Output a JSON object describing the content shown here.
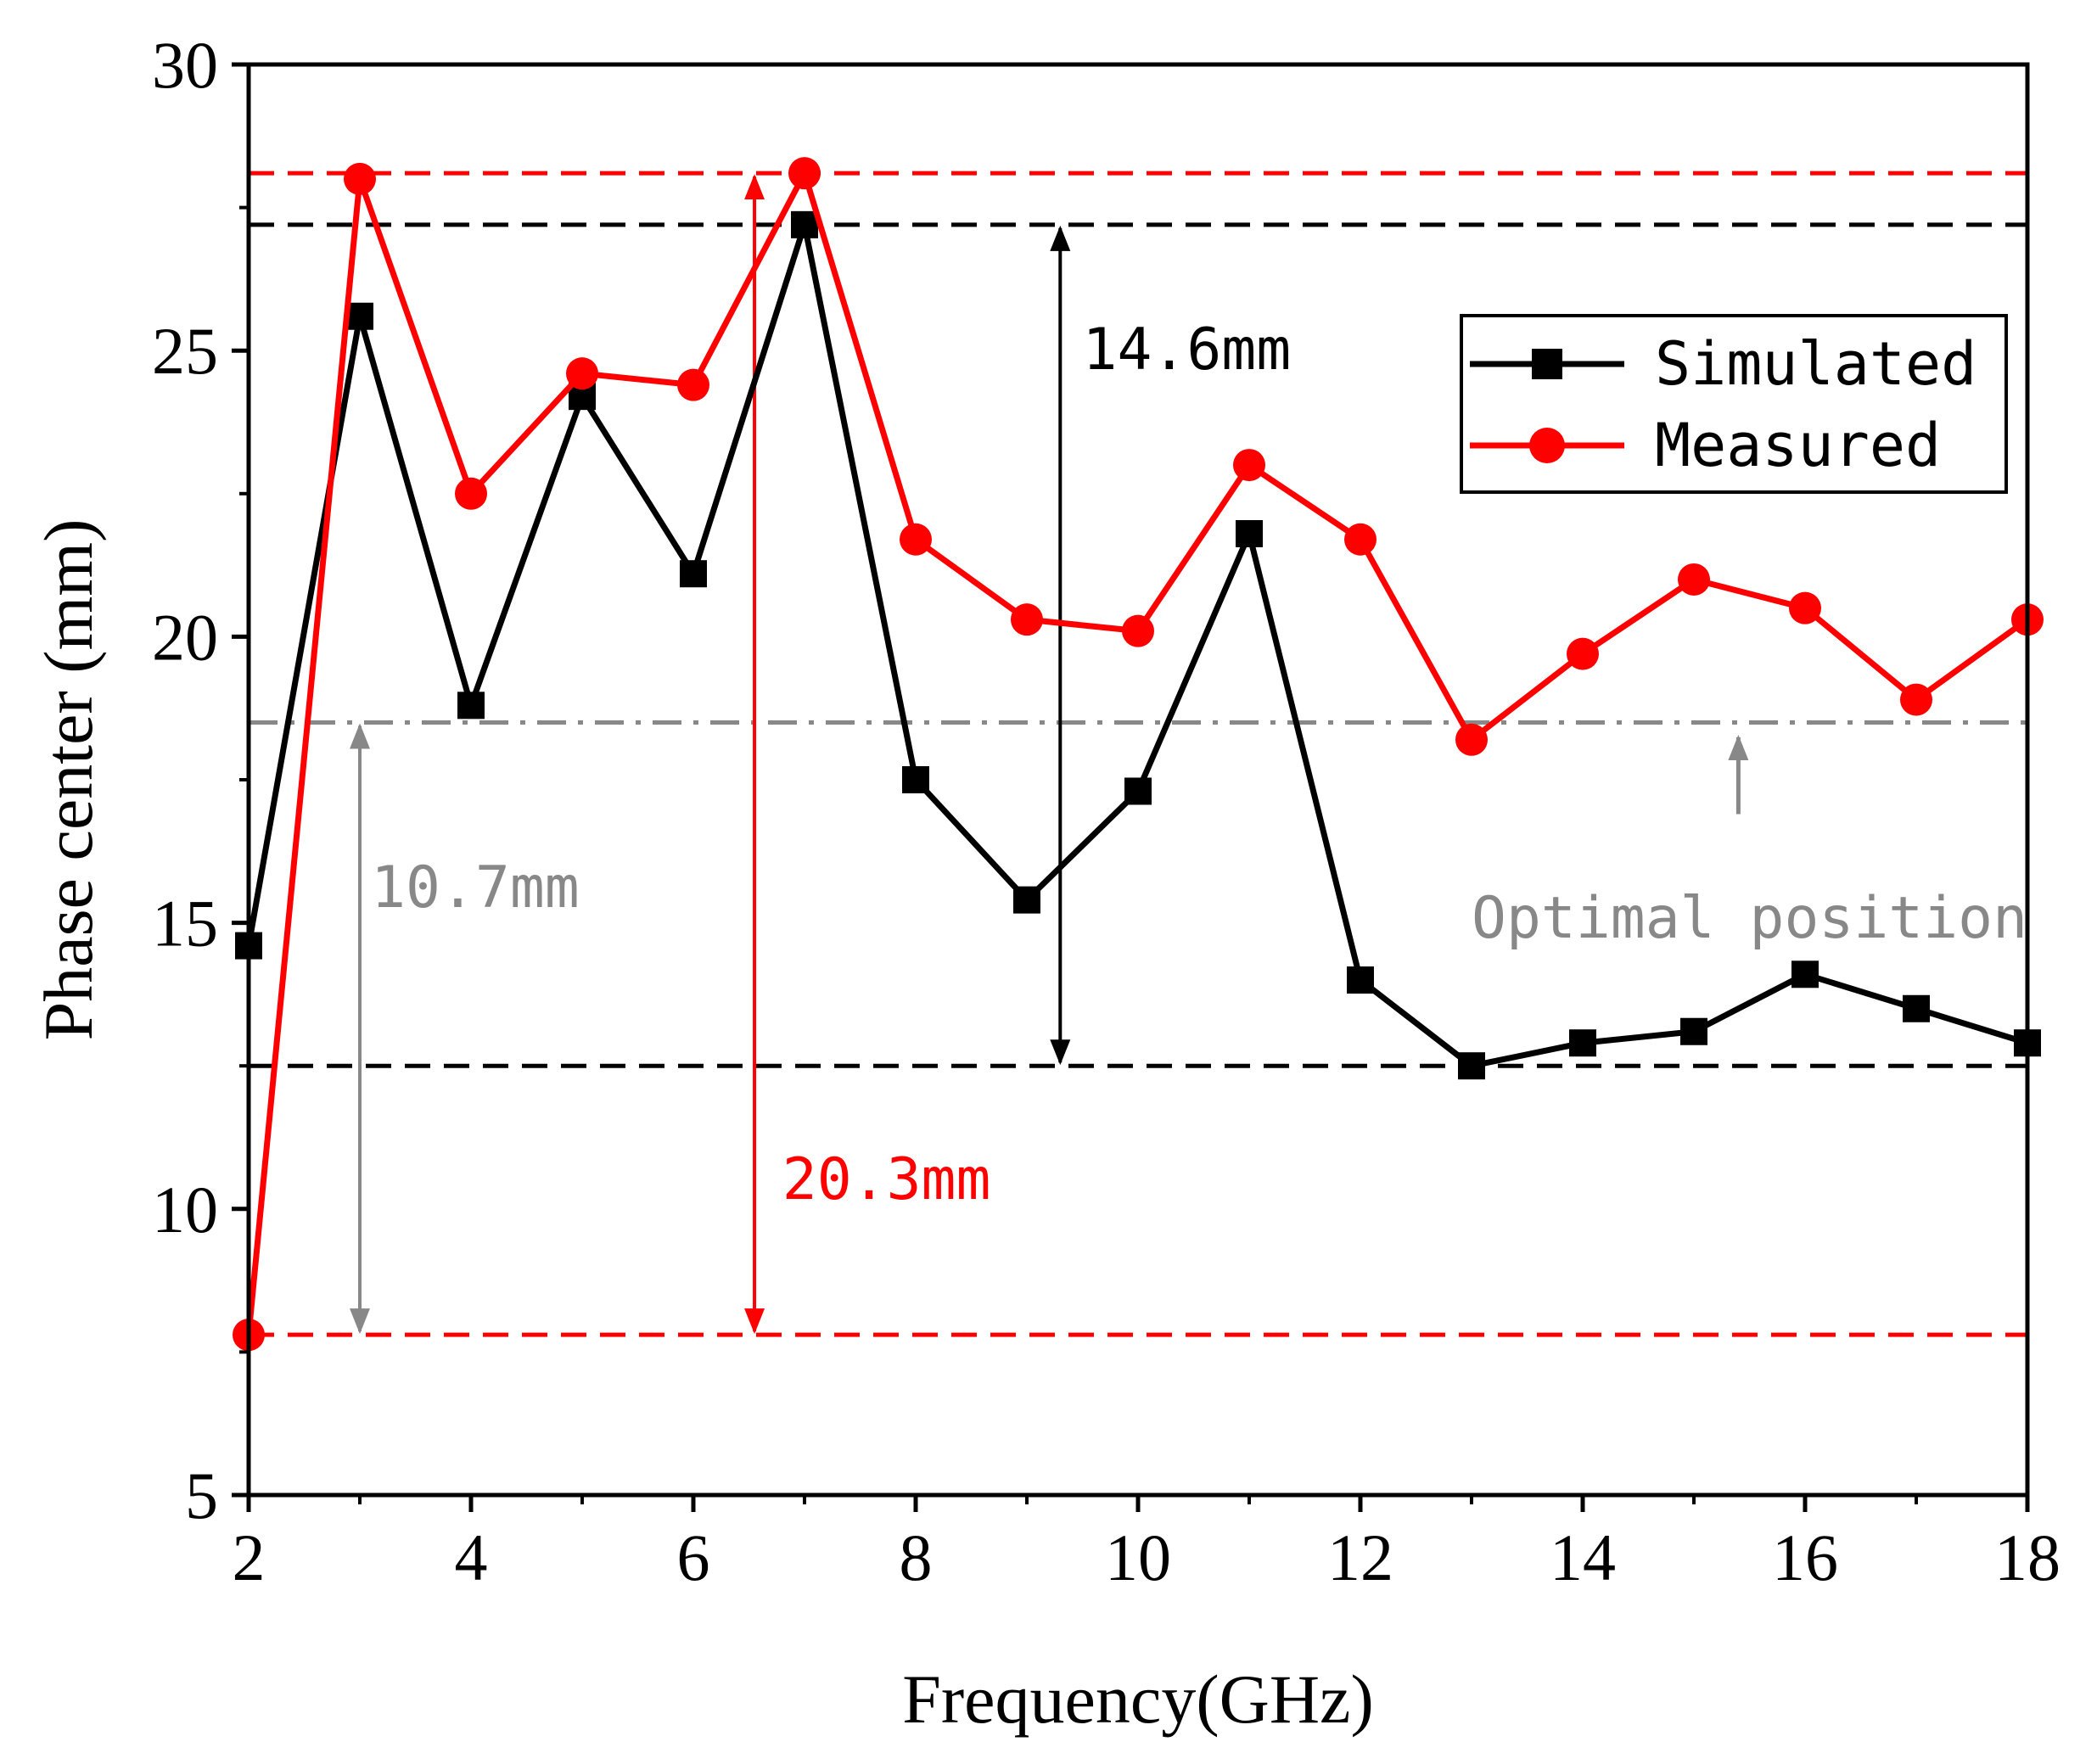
{
  "chart_data": {
    "type": "line",
    "title": "",
    "xlabel": "Frequency(GHz)",
    "ylabel": "Phase center (mm)",
    "xlim": [
      2,
      18
    ],
    "ylim": [
      5,
      30
    ],
    "xticks": [
      2,
      4,
      6,
      8,
      10,
      12,
      14,
      16,
      18
    ],
    "yticks": [
      5,
      10,
      15,
      20,
      25,
      30
    ],
    "x": [
      2,
      3,
      4,
      5,
      6,
      7,
      8,
      9,
      10,
      11,
      12,
      13,
      14,
      15,
      16,
      17,
      18
    ],
    "series": [
      {
        "name": "Simulated",
        "color": "#000000",
        "marker": "square",
        "values": [
          14.6,
          25.6,
          18.8,
          24.2,
          21.1,
          27.2,
          17.5,
          15.4,
          17.3,
          21.8,
          14.0,
          12.5,
          12.9,
          13.1,
          14.1,
          13.5,
          12.9
        ]
      },
      {
        "name": "Measured",
        "color": "#ff0000",
        "marker": "circle",
        "values": [
          7.8,
          28.0,
          22.5,
          24.6,
          24.4,
          28.1,
          21.7,
          20.3,
          20.1,
          23.0,
          21.7,
          18.2,
          19.7,
          21.0,
          20.5,
          18.9,
          20.3
        ]
      }
    ],
    "reference_lines": [
      {
        "name": "measured-max-line",
        "y": 28.1,
        "color": "#ff0000",
        "style": "dashed"
      },
      {
        "name": "simulated-max-line",
        "y": 27.2,
        "color": "#000000",
        "style": "dashed"
      },
      {
        "name": "optimal-position-line",
        "y": 18.5,
        "color": "#888888",
        "style": "dashdot"
      },
      {
        "name": "simulated-min-line",
        "y": 12.5,
        "color": "#000000",
        "style": "dashed"
      },
      {
        "name": "measured-min-line",
        "y": 7.8,
        "color": "#ff0000",
        "style": "dashed"
      }
    ],
    "range_arrows": [
      {
        "name": "simulated-range-arrow",
        "x": 9.3,
        "y1": 12.5,
        "y2": 27.2,
        "color": "#000000",
        "label": "14.6mm",
        "label_x": 9.5,
        "label_y": 25.0
      },
      {
        "name": "optimal-range-arrow",
        "x": 3.0,
        "y1": 7.8,
        "y2": 18.5,
        "color": "#888888",
        "label": "10.7mm",
        "label_x": 3.1,
        "label_y": 15.6
      },
      {
        "name": "measured-range-arrow",
        "x": 6.55,
        "y1": 7.8,
        "y2": 28.1,
        "color": "#ff0000",
        "label": "20.3mm",
        "label_x": 6.8,
        "label_y": 10.5
      }
    ],
    "annotations": [
      {
        "name": "optimal-position",
        "text": "Optimal position",
        "color": "#888888",
        "x": 13.0,
        "y": 15.1,
        "arrow_from": 16.9,
        "arrow_to": 18.3,
        "arrow_x": 15.4
      }
    ],
    "legend": {
      "position": "top-right",
      "entries": [
        "Simulated",
        "Measured"
      ]
    }
  }
}
